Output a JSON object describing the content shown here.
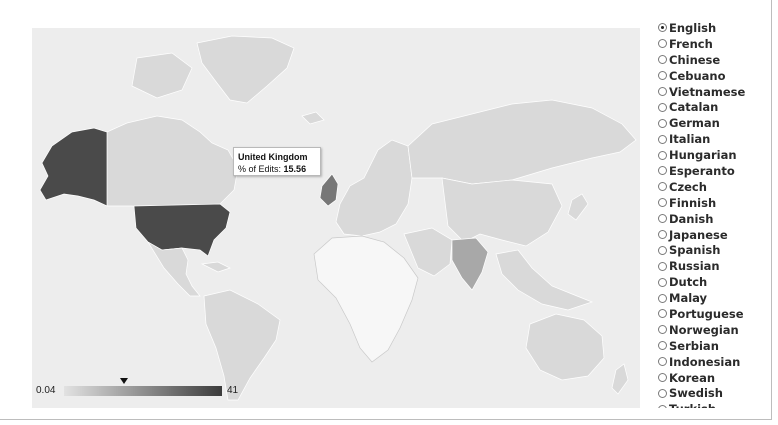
{
  "tooltip": {
    "country": "United Kingdom",
    "metric_label": "% of Edits:",
    "metric_value": "15.56"
  },
  "legend": {
    "min_label": "0.04",
    "max_label": "41",
    "min_value": 0.04,
    "max_value": 41,
    "marker_value": 15.56,
    "color_low": "#e2e2e2",
    "color_high": "#3b3b3b"
  },
  "colors": {
    "ocean": "#ededed",
    "no_data": "#f7f7f7",
    "light_region": "#d9d9d9",
    "medium_region": "#a8a8a8",
    "dark_region": "#4a4a4a",
    "selected_region": "#777777"
  },
  "languages": {
    "selected": "English",
    "items": [
      "English",
      "French",
      "Chinese",
      "Cebuano",
      "Vietnamese",
      "Catalan",
      "German",
      "Italian",
      "Hungarian",
      "Esperanto",
      "Czech",
      "Finnish",
      "Danish",
      "Japanese",
      "Spanish",
      "Russian",
      "Dutch",
      "Malay",
      "Portuguese",
      "Norwegian",
      "Serbian",
      "Indonesian",
      "Korean",
      "Swedish",
      "Turkish"
    ]
  }
}
